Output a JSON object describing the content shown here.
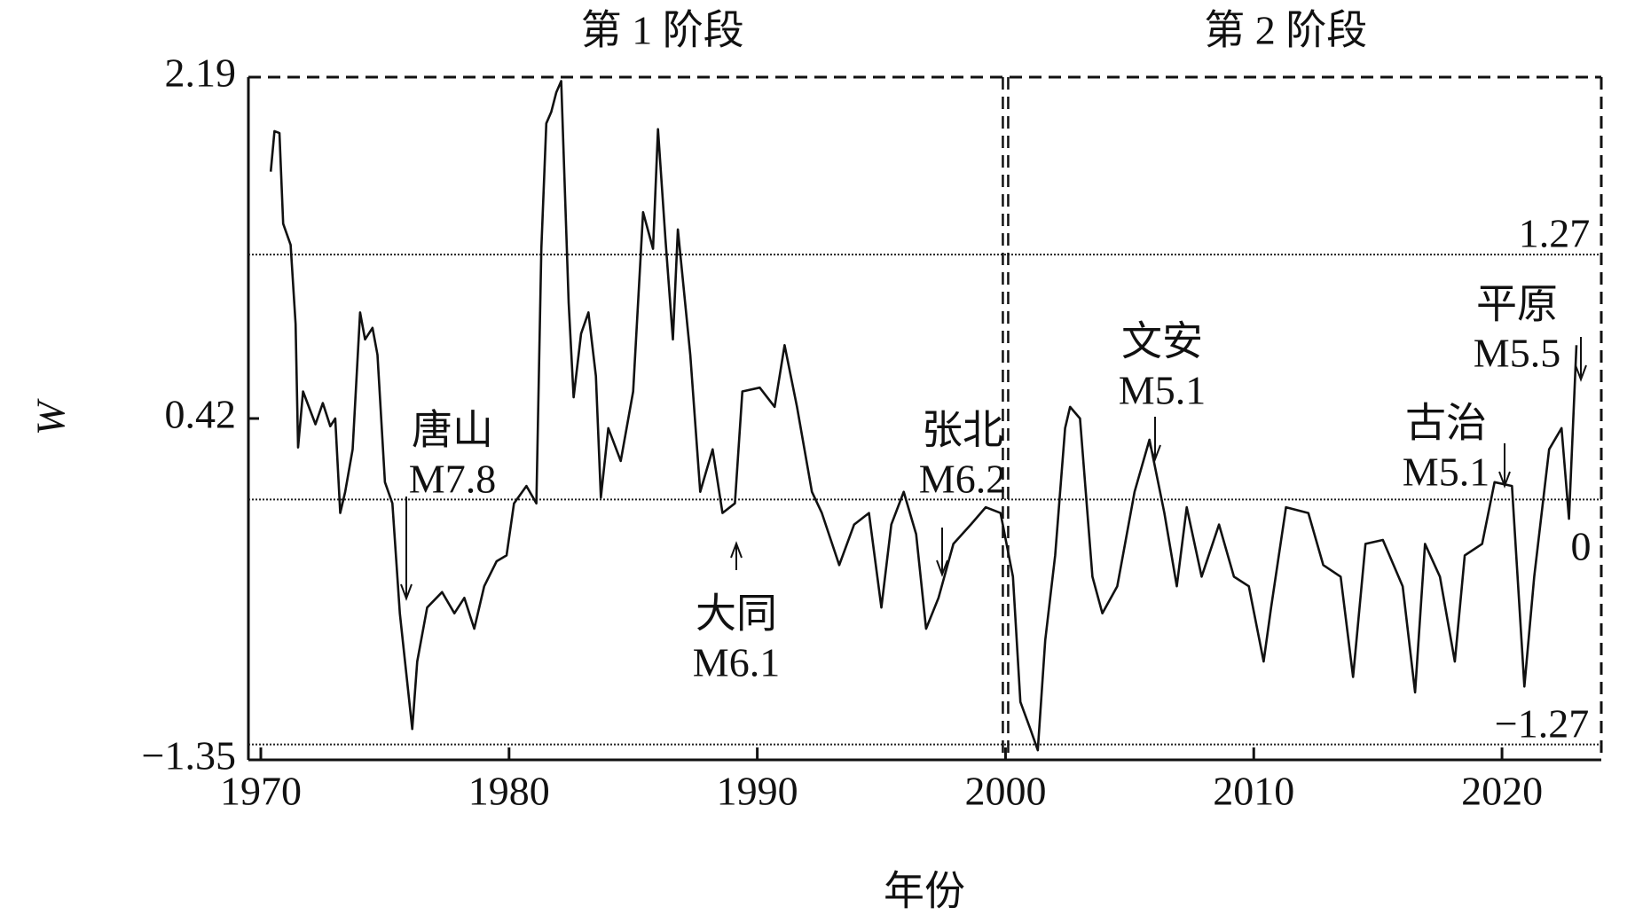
{
  "chart_data": {
    "type": "line",
    "xlabel": "年份",
    "ylabel": "W",
    "color": "#111111",
    "x": [
      1970.4,
      1970.55,
      1970.75,
      1970.9,
      1971.2,
      1971.4,
      1971.5,
      1971.7,
      1972.2,
      1972.5,
      1972.8,
      1973.0,
      1973.2,
      1973.4,
      1973.7,
      1974.0,
      1974.2,
      1974.5,
      1974.7,
      1975.0,
      1975.3,
      1975.6,
      1976.1,
      1976.3,
      1976.7,
      1977.3,
      1977.8,
      1978.2,
      1978.6,
      1979.0,
      1979.5,
      1979.9,
      1980.2,
      1980.7,
      1981.1,
      1981.3,
      1981.5,
      1981.7,
      1981.9,
      1982.1,
      1982.4,
      1982.6,
      1982.9,
      1983.2,
      1983.5,
      1983.7,
      1984.0,
      1984.5,
      1985.0,
      1985.4,
      1985.8,
      1986.0,
      1986.3,
      1986.6,
      1986.8,
      1987.3,
      1987.7,
      1988.2,
      1988.6,
      1989.1,
      1989.4,
      1990.1,
      1990.7,
      1991.1,
      1991.6,
      1992.2,
      1992.6,
      1993.3,
      1993.9,
      1994.5,
      1995.0,
      1995.4,
      1995.9,
      1996.4,
      1996.8,
      1997.3,
      1997.9,
      1998.6,
      1999.2,
      1999.8,
      2000.3,
      2000.6,
      2001.0,
      2001.3,
      2001.6,
      2002.0,
      2002.4,
      2002.6,
      2003.0,
      2003.5,
      2003.9,
      2004.5,
      2005.2,
      2005.8,
      2006.4,
      2006.9,
      2007.3,
      2007.9,
      2008.6,
      2009.2,
      2009.8,
      2010.4,
      2010.7,
      2011.3,
      2012.2,
      2012.8,
      2013.5,
      2014.0,
      2014.5,
      2015.2,
      2016.0,
      2016.5,
      2016.9,
      2017.5,
      2018.1,
      2018.5,
      2019.2,
      2019.7,
      2020.4,
      2020.9,
      2021.3,
      2021.9,
      2022.4,
      2022.7,
      2023.0
    ],
    "values": [
      1.7,
      1.91,
      1.9,
      1.43,
      1.32,
      0.91,
      0.27,
      0.56,
      0.39,
      0.5,
      0.38,
      0.42,
      -0.07,
      0.04,
      0.26,
      0.97,
      0.83,
      0.89,
      0.75,
      0.09,
      -0.02,
      -0.59,
      -1.19,
      -0.84,
      -0.56,
      -0.48,
      -0.59,
      -0.51,
      -0.67,
      -0.45,
      -0.32,
      -0.29,
      -0.02,
      0.07,
      -0.02,
      1.3,
      1.95,
      2.01,
      2.11,
      2.17,
      1.02,
      0.53,
      0.86,
      0.97,
      0.64,
      0.01,
      0.37,
      0.2,
      0.56,
      1.49,
      1.3,
      1.92,
      1.35,
      0.83,
      1.4,
      0.75,
      0.04,
      0.26,
      -0.07,
      -0.02,
      0.56,
      0.58,
      0.48,
      0.8,
      0.48,
      0.04,
      -0.07,
      -0.34,
      -0.13,
      -0.07,
      -0.56,
      -0.13,
      0.04,
      -0.18,
      -0.67,
      -0.51,
      -0.23,
      -0.13,
      -0.04,
      -0.07,
      -0.4,
      -1.05,
      -1.19,
      -1.3,
      -0.73,
      -0.29,
      0.37,
      0.48,
      0.42,
      -0.4,
      -0.59,
      -0.45,
      0.04,
      0.31,
      -0.07,
      -0.45,
      -0.04,
      -0.4,
      -0.13,
      -0.4,
      -0.45,
      -0.84,
      -0.56,
      -0.04,
      -0.07,
      -0.34,
      -0.4,
      -0.92,
      -0.23,
      -0.21,
      -0.45,
      -1.0,
      -0.23,
      -0.4,
      -0.84,
      -0.29,
      -0.23,
      0.09,
      0.07,
      -0.97,
      -0.4,
      0.26,
      0.37,
      -0.1,
      0.8
    ],
    "xlim": [
      1969.5,
      2024
    ],
    "xticks": [
      1970,
      1980,
      1990,
      2000,
      2010,
      2020
    ],
    "ylim": [
      -1.35,
      2.19
    ],
    "yticks": [
      {
        "value": -1.35,
        "label": "−1.35"
      },
      0.42,
      2.19
    ],
    "reference_lines": [
      1.27,
      0,
      {
        "value": -1.27,
        "label": "−1.27"
      }
    ],
    "divider_x": 2000,
    "phases": [
      "第 1 阶段",
      "第 2 阶段"
    ],
    "annotations": [
      {
        "place": "唐山",
        "magnitude": "M7.8"
      },
      {
        "place": "大同",
        "magnitude": "M6.1"
      },
      {
        "place": "张北",
        "magnitude": "M6.2"
      },
      {
        "place": "文安",
        "magnitude": "M5.1"
      },
      {
        "place": "古治",
        "magnitude": "M5.1"
      },
      {
        "place": "平原",
        "magnitude": "M5.5"
      }
    ]
  }
}
